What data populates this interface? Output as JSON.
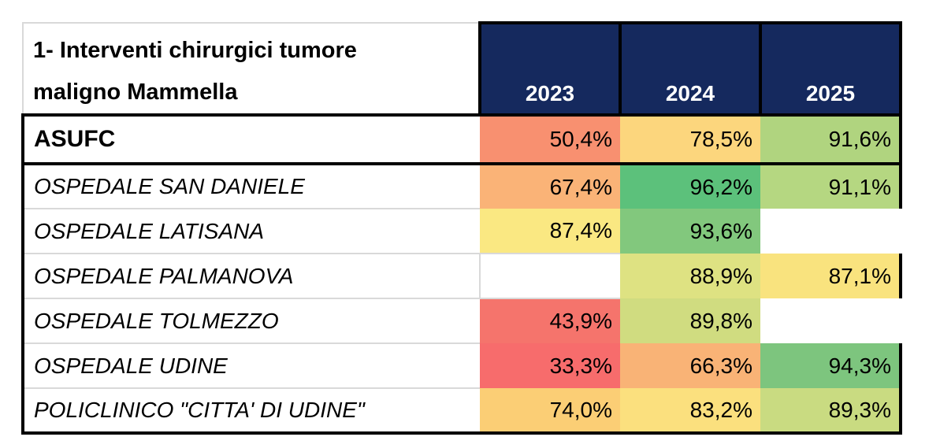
{
  "title": "1- Interventi chirurgici tumore\nmaligno Mammella",
  "columns": [
    "2023",
    "2024",
    "2025"
  ],
  "rows": [
    {
      "name": "ASUFC",
      "style": "summary",
      "values": [
        "50,4%",
        "78,5%",
        "91,6%"
      ],
      "colors": [
        "#F89070",
        "#FCD67D",
        "#B0D47F"
      ]
    },
    {
      "name": "OSPEDALE SAN DANIELE",
      "style": "hospital",
      "values": [
        "67,4%",
        "96,2%",
        "91,1%"
      ],
      "colors": [
        "#FAB377",
        "#5CC17B",
        "#B5D781"
      ]
    },
    {
      "name": "OSPEDALE LATISANA",
      "style": "hospital",
      "values": [
        "87,4%",
        "93,6%",
        null
      ],
      "colors": [
        "#FAE882",
        "#82C87D",
        null
      ]
    },
    {
      "name": "OSPEDALE PALMANOVA",
      "style": "hospital",
      "values": [
        null,
        "88,9%",
        "87,1%"
      ],
      "colors": [
        null,
        "#DEE282",
        "#F9E37E"
      ]
    },
    {
      "name": "OSPEDALE TOLMEZZO",
      "style": "hospital",
      "values": [
        "43,9%",
        "89,8%",
        null
      ],
      "colors": [
        "#F5746C",
        "#D0DC80",
        null
      ]
    },
    {
      "name": "OSPEDALE UDINE",
      "style": "hospital",
      "values": [
        "33,3%",
        "66,3%",
        "94,3%"
      ],
      "colors": [
        "#F76C6C",
        "#F9B376",
        "#7DC57E"
      ]
    },
    {
      "name": "POLICLINICO \"CITTA' DI UDINE\"",
      "style": "hospital",
      "values": [
        "74,0%",
        "83,2%",
        "89,3%"
      ],
      "colors": [
        "#FBCE75",
        "#FBE07E",
        "#C9DB81"
      ]
    }
  ],
  "palette": {
    "header_bg": "#15295E",
    "header_text": "#FFFFFF",
    "border_black": "#000000",
    "grid_gray": "#D9D9D9",
    "scale_low": "#F8696B",
    "scale_mid": "#FFEB84",
    "scale_high": "#63BE7B"
  },
  "chart_data": {
    "type": "heatmap",
    "title": "1- Interventi chirurgici tumore maligno Mammella",
    "columns": [
      "2023",
      "2024",
      "2025"
    ],
    "row_labels": [
      "ASUFC",
      "OSPEDALE SAN DANIELE",
      "OSPEDALE LATISANA",
      "OSPEDALE PALMANOVA",
      "OSPEDALE TOLMEZZO",
      "OSPEDALE UDINE",
      "POLICLINICO \"CITTA' DI UDINE\""
    ],
    "values_percent": [
      [
        50.4,
        78.5,
        91.6
      ],
      [
        67.4,
        96.2,
        91.1
      ],
      [
        87.4,
        93.6,
        null
      ],
      [
        null,
        88.9,
        87.1
      ],
      [
        43.9,
        89.8,
        null
      ],
      [
        33.3,
        66.3,
        94.3
      ],
      [
        74.0,
        83.2,
        89.3
      ]
    ],
    "color_scale": "red-yellow-green",
    "number_format": "0,0% (Italian decimal comma)"
  }
}
